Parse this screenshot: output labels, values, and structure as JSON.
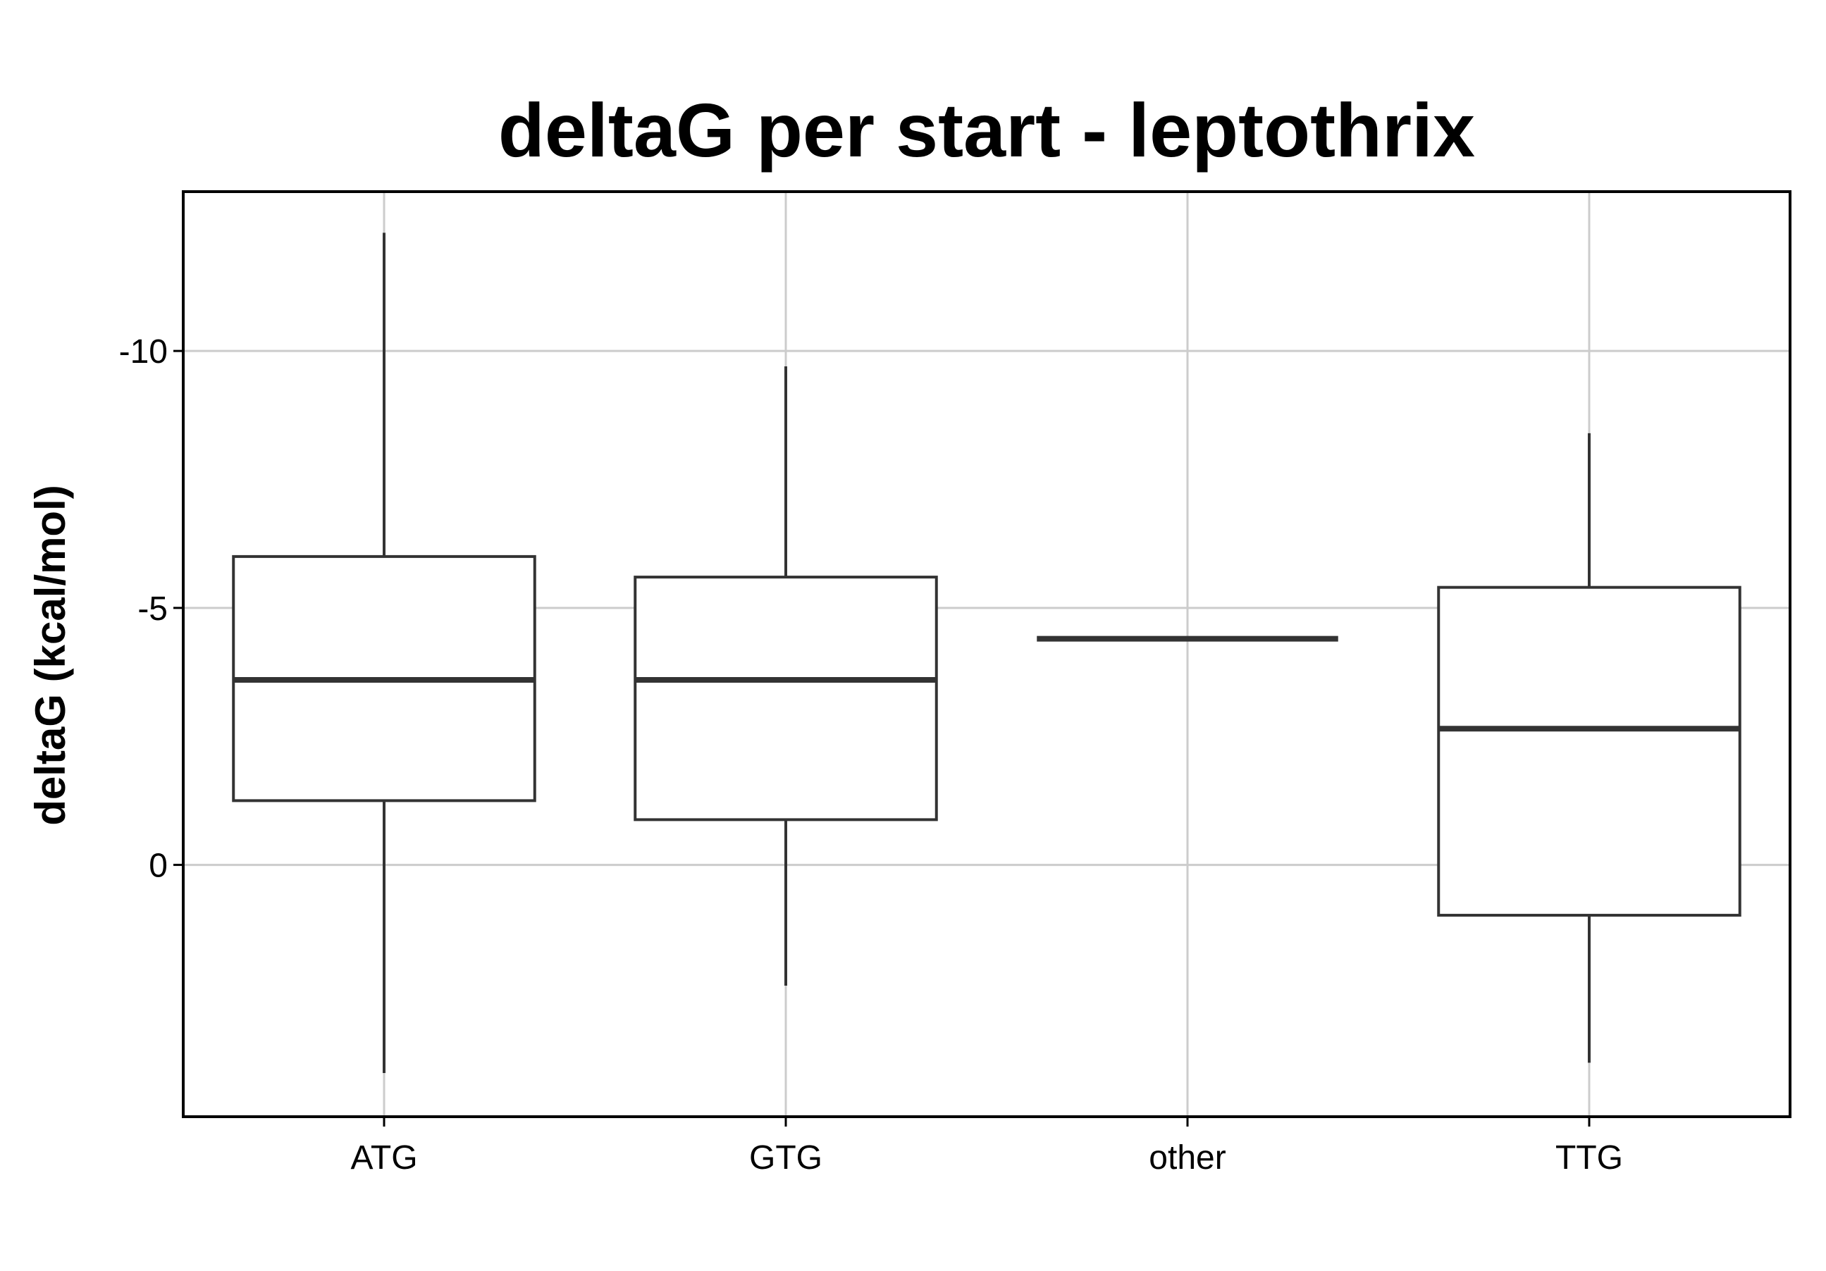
{
  "chart_data": {
    "type": "box",
    "title": "deltaG per start - leptothrix",
    "xlabel": "",
    "ylabel": "deltaG (kcal/mol)",
    "y_reversed": true,
    "ylim": [
      4.9,
      -13.1
    ],
    "yticks": [
      -10,
      -5,
      0
    ],
    "ytick_labels": [
      "-10",
      "-5",
      "0"
    ],
    "grid": true,
    "categories": [
      "ATG",
      "GTG",
      "other",
      "TTG"
    ],
    "boxes": [
      {
        "category": "ATG",
        "whisker_low": -12.3,
        "q1": -6.0,
        "median": -3.6,
        "q3": -1.25,
        "whisker_high": 4.05
      },
      {
        "category": "GTG",
        "whisker_low": -9.7,
        "q1": -5.6,
        "median": -3.6,
        "q3": -0.88,
        "whisker_high": 2.35
      },
      {
        "category": "other",
        "whisker_low": -4.4,
        "q1": -4.4,
        "median": -4.4,
        "q3": -4.4,
        "whisker_high": -4.4
      },
      {
        "category": "TTG",
        "whisker_low": -8.4,
        "q1": -5.4,
        "median": -2.65,
        "q3": 0.98,
        "whisker_high": 3.85
      }
    ],
    "colors": {
      "box_line": "#333333",
      "grid": "#cccccc",
      "axis": "#000000"
    }
  }
}
